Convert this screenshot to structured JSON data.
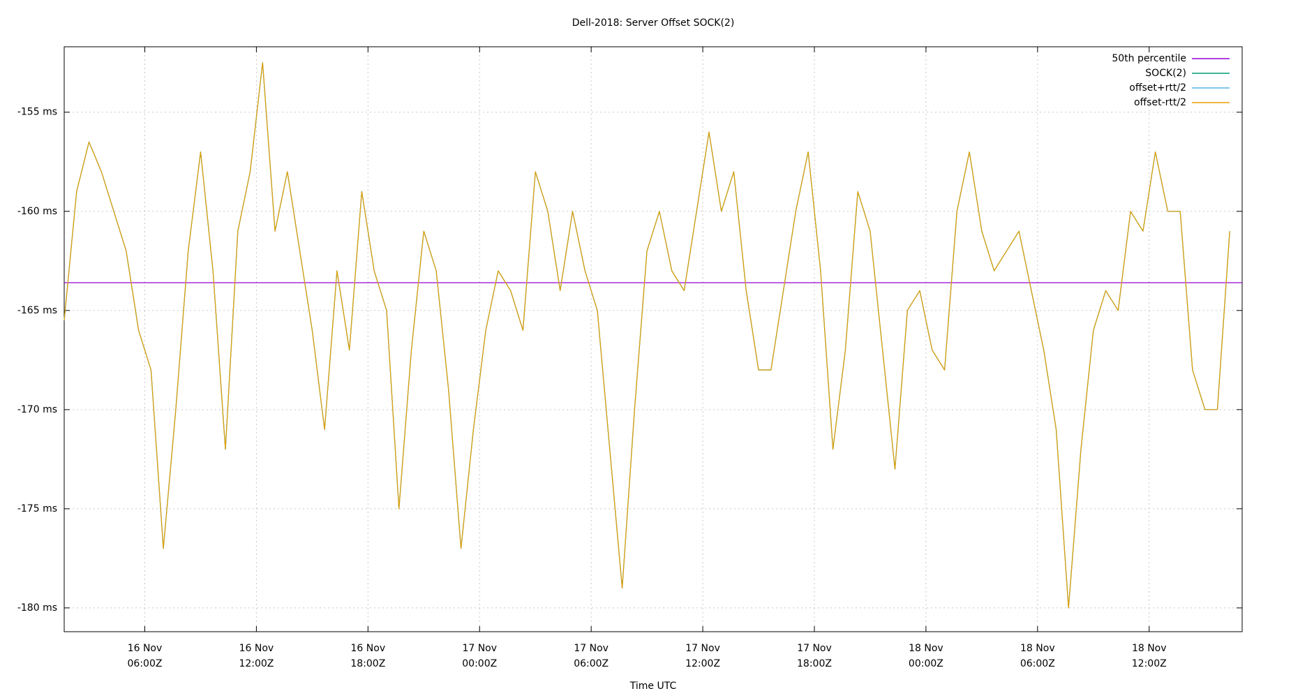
{
  "chart_data": {
    "type": "line",
    "title": "Dell-2018: Server Offset SOCK(2)",
    "x_label": "Time UTC",
    "xlim": [
      "16 Nov 01:40Z",
      "18 Nov 17:00Z"
    ],
    "xticks": [
      "16 Nov 06:00Z",
      "16 Nov 12:00Z",
      "16 Nov 18:00Z",
      "17 Nov 00:00Z",
      "17 Nov 06:00Z",
      "17 Nov 12:00Z",
      "17 Nov 18:00Z",
      "18 Nov 00:00Z",
      "18 Nov 06:00Z",
      "18 Nov 12:00Z"
    ],
    "ylim": [
      -181.2,
      -151.7
    ],
    "yticks": [
      {
        "value": -155,
        "label": "-155 ms"
      },
      {
        "value": -160,
        "label": "-160 ms"
      },
      {
        "value": -165,
        "label": "-165 ms"
      },
      {
        "value": -170,
        "label": "-170 ms"
      },
      {
        "value": -175,
        "label": "-175 ms"
      },
      {
        "value": -180,
        "label": "-180 ms"
      }
    ],
    "grid": true,
    "legend": "top-right",
    "x": [
      "16 Nov 01:40Z",
      "16 Nov 02:20Z",
      "16 Nov 03:00Z",
      "16 Nov 03:40Z",
      "16 Nov 04:20Z",
      "16 Nov 05:00Z",
      "16 Nov 05:40Z",
      "16 Nov 06:20Z",
      "16 Nov 07:00Z",
      "16 Nov 07:40Z",
      "16 Nov 08:20Z",
      "16 Nov 09:00Z",
      "16 Nov 09:40Z",
      "16 Nov 10:20Z",
      "16 Nov 11:00Z",
      "16 Nov 11:40Z",
      "16 Nov 12:20Z",
      "16 Nov 13:00Z",
      "16 Nov 13:40Z",
      "16 Nov 14:20Z",
      "16 Nov 15:00Z",
      "16 Nov 15:40Z",
      "16 Nov 16:20Z",
      "16 Nov 17:00Z",
      "16 Nov 17:40Z",
      "16 Nov 18:20Z",
      "16 Nov 19:00Z",
      "16 Nov 19:40Z",
      "16 Nov 20:20Z",
      "16 Nov 21:00Z",
      "16 Nov 21:40Z",
      "16 Nov 22:20Z",
      "16 Nov 23:00Z",
      "16 Nov 23:40Z",
      "17 Nov 00:20Z",
      "17 Nov 01:00Z",
      "17 Nov 01:40Z",
      "17 Nov 02:20Z",
      "17 Nov 03:00Z",
      "17 Nov 03:40Z",
      "17 Nov 04:20Z",
      "17 Nov 05:00Z",
      "17 Nov 05:40Z",
      "17 Nov 06:20Z",
      "17 Nov 07:00Z",
      "17 Nov 07:40Z",
      "17 Nov 08:20Z",
      "17 Nov 09:00Z",
      "17 Nov 09:40Z",
      "17 Nov 10:20Z",
      "17 Nov 11:00Z",
      "17 Nov 11:40Z",
      "17 Nov 12:20Z",
      "17 Nov 13:00Z",
      "17 Nov 13:40Z",
      "17 Nov 14:20Z",
      "17 Nov 15:00Z",
      "17 Nov 15:40Z",
      "17 Nov 16:20Z",
      "17 Nov 17:00Z",
      "17 Nov 17:40Z",
      "17 Nov 18:20Z",
      "17 Nov 19:00Z",
      "17 Nov 19:40Z",
      "17 Nov 20:20Z",
      "17 Nov 21:00Z",
      "17 Nov 21:40Z",
      "17 Nov 22:20Z",
      "17 Nov 23:00Z",
      "17 Nov 23:40Z",
      "18 Nov 00:20Z",
      "18 Nov 01:00Z",
      "18 Nov 01:40Z",
      "18 Nov 02:20Z",
      "18 Nov 03:00Z",
      "18 Nov 03:40Z",
      "18 Nov 04:20Z",
      "18 Nov 05:00Z",
      "18 Nov 05:40Z",
      "18 Nov 06:20Z",
      "18 Nov 07:00Z",
      "18 Nov 07:40Z",
      "18 Nov 08:20Z",
      "18 Nov 09:00Z",
      "18 Nov 09:40Z",
      "18 Nov 10:20Z",
      "18 Nov 11:00Z",
      "18 Nov 11:40Z",
      "18 Nov 12:20Z",
      "18 Nov 13:00Z",
      "18 Nov 13:40Z",
      "18 Nov 14:20Z",
      "18 Nov 15:00Z",
      "18 Nov 15:40Z",
      "18 Nov 16:20Z"
    ],
    "series": [
      {
        "name": "50th percentile",
        "color": "#9400d3",
        "x": [
          "16 Nov 01:40Z",
          "18 Nov 17:00Z"
        ],
        "values": [
          -163.6,
          -163.6
        ]
      },
      {
        "name": "SOCK(2)",
        "color": "#009e73",
        "values": [
          -165.5,
          -159,
          -156.5,
          -158,
          -160,
          -162,
          -166,
          -168,
          -177,
          -170,
          -162,
          -157,
          -163,
          -172,
          -161,
          -158,
          -152.5,
          -161,
          -158,
          -162,
          -166,
          -171,
          -163,
          -167,
          -159,
          -163,
          -165,
          -175,
          -167,
          -161,
          -163,
          -169,
          -177,
          -171,
          -166,
          -163,
          -164,
          -166,
          -158,
          -160,
          -164,
          -160,
          -163,
          -165,
          -172,
          -179,
          -170,
          -162,
          -160,
          -163,
          -164,
          -160,
          -156,
          -160,
          -158,
          -164,
          -168,
          -168,
          -164,
          -160,
          -157,
          -163,
          -172,
          -167,
          -159,
          -161,
          -167,
          -173,
          -165,
          -164,
          -167,
          -168,
          -160,
          -157,
          -161,
          -163,
          -162,
          -161,
          -164,
          -167,
          -171,
          -180,
          -172,
          -166,
          -164,
          -165,
          -160,
          -161,
          -157,
          -160,
          -160,
          -168,
          -170,
          -170,
          -161
        ]
      },
      {
        "name": "offset+rtt/2",
        "color": "#56b4e9",
        "values": [
          -165.5,
          -159,
          -156.5,
          -158,
          -160,
          -162,
          -166,
          -168,
          -177,
          -170,
          -162,
          -157,
          -163,
          -172,
          -161,
          -158,
          -152.5,
          -161,
          -158,
          -162,
          -166,
          -171,
          -163,
          -167,
          -159,
          -163,
          -165,
          -175,
          -167,
          -161,
          -163,
          -169,
          -177,
          -171,
          -166,
          -163,
          -164,
          -166,
          -158,
          -160,
          -164,
          -160,
          -163,
          -165,
          -172,
          -179,
          -170,
          -162,
          -160,
          -163,
          -164,
          -160,
          -156,
          -160,
          -158,
          -164,
          -168,
          -168,
          -164,
          -160,
          -157,
          -163,
          -172,
          -167,
          -159,
          -161,
          -167,
          -173,
          -165,
          -164,
          -167,
          -168,
          -160,
          -157,
          -161,
          -163,
          -162,
          -161,
          -164,
          -167,
          -171,
          -180,
          -172,
          -166,
          -164,
          -165,
          -160,
          -161,
          -157,
          -160,
          -160,
          -168,
          -170,
          -170,
          -161
        ]
      },
      {
        "name": "offset-rtt/2",
        "color": "#e69f00",
        "values": [
          -165.5,
          -159,
          -156.5,
          -158,
          -160,
          -162,
          -166,
          -168,
          -177,
          -170,
          -162,
          -157,
          -163,
          -172,
          -161,
          -158,
          -152.5,
          -161,
          -158,
          -162,
          -166,
          -171,
          -163,
          -167,
          -159,
          -163,
          -165,
          -175,
          -167,
          -161,
          -163,
          -169,
          -177,
          -171,
          -166,
          -163,
          -164,
          -166,
          -158,
          -160,
          -164,
          -160,
          -163,
          -165,
          -172,
          -179,
          -170,
          -162,
          -160,
          -163,
          -164,
          -160,
          -156,
          -160,
          -158,
          -164,
          -168,
          -168,
          -164,
          -160,
          -157,
          -163,
          -172,
          -167,
          -159,
          -161,
          -167,
          -173,
          -165,
          -164,
          -167,
          -168,
          -160,
          -157,
          -161,
          -163,
          -162,
          -161,
          -164,
          -167,
          -171,
          -180,
          -172,
          -166,
          -164,
          -165,
          -160,
          -161,
          -157,
          -160,
          -160,
          -168,
          -170,
          -170,
          -161
        ]
      }
    ]
  }
}
